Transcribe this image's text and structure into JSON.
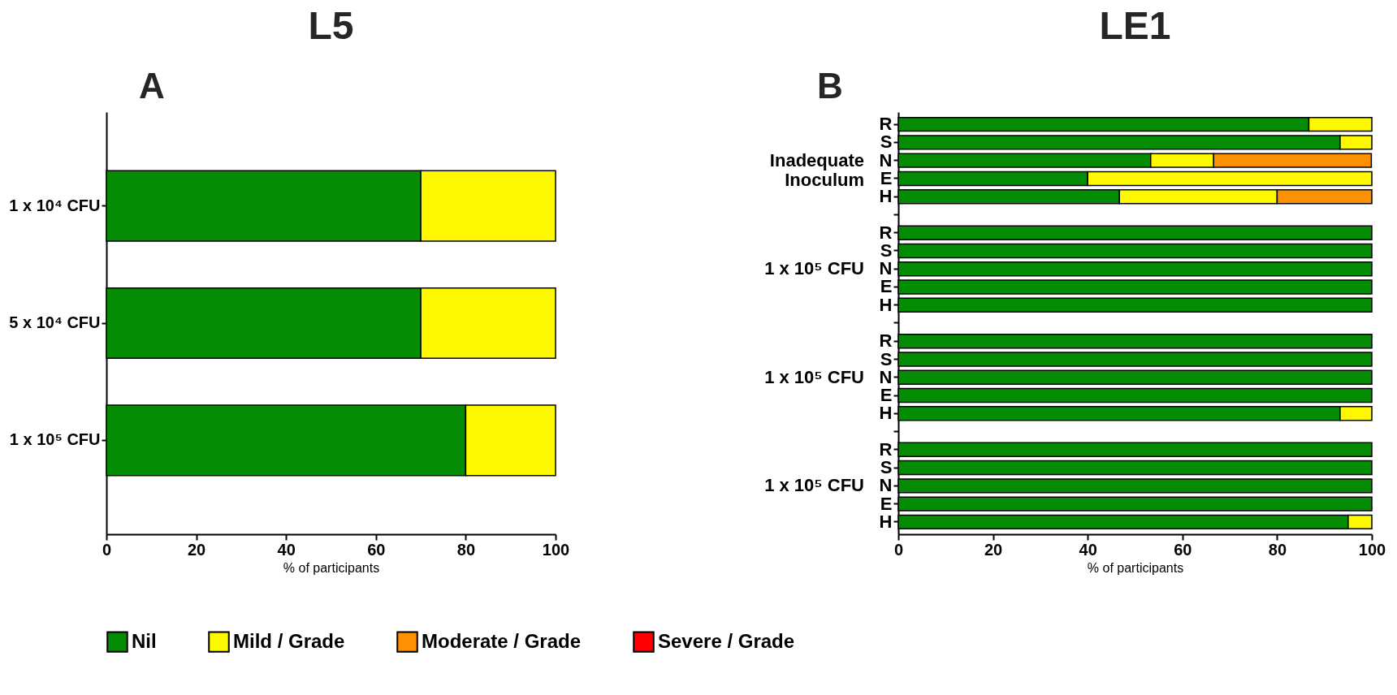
{
  "chart_data": [
    {
      "type": "bar",
      "orientation": "horizontal",
      "stacked": true,
      "title": "L5",
      "subtitle": "A",
      "xlabel": "% of participants",
      "categories": [
        "1 x 10⁴ CFU",
        "5 x 10⁴ CFU",
        "1 x 10⁵ CFU"
      ],
      "series": [
        {
          "name": "Nil",
          "color": "#058c05",
          "values": [
            70,
            70,
            80
          ]
        },
        {
          "name": "Mild / Grade",
          "color": "#fef901",
          "values": [
            30,
            30,
            20
          ]
        },
        {
          "name": "Moderate / Grade",
          "color": "#fe9102",
          "values": [
            null,
            null,
            null
          ]
        },
        {
          "name": "Severe / Grade",
          "color": "#fe0000",
          "values": [
            null,
            null,
            null
          ]
        }
      ],
      "xlim": [
        0,
        100
      ],
      "xticks": [
        0,
        20,
        40,
        60,
        80,
        100
      ],
      "grid": false,
      "legend": "bottom"
    },
    {
      "type": "bar",
      "orientation": "horizontal",
      "stacked": true,
      "title": "LE1",
      "subtitle": "B",
      "xlabel": "% of participants",
      "categories": [
        "R",
        "S",
        "N",
        "E",
        "H",
        null,
        "R",
        "S",
        "N",
        "E",
        "H",
        null,
        "R",
        "S",
        "N",
        "E",
        "H",
        null,
        "R",
        "S",
        "N",
        "E",
        "H"
      ],
      "series": [
        {
          "color": "#058c05",
          "values": [
            86.7,
            93.3,
            53.3,
            40,
            46.7,
            null,
            100,
            100,
            100,
            100,
            100,
            null,
            100,
            100,
            100,
            100,
            93.3,
            null,
            100,
            100,
            100,
            100,
            95
          ]
        },
        {
          "color": "#fef901",
          "values": [
            13.3,
            6.7,
            13.3,
            60,
            33.3,
            null,
            null,
            null,
            null,
            null,
            null,
            null,
            null,
            null,
            null,
            null,
            6.7,
            null,
            null,
            null,
            null,
            null,
            5
          ]
        },
        {
          "color": "#fe9102",
          "values": [
            null,
            null,
            33.3,
            null,
            20,
            null,
            null,
            null,
            null,
            null,
            null,
            null,
            null,
            null,
            null,
            null,
            null,
            null,
            null,
            null,
            null,
            null,
            null
          ]
        }
      ],
      "annotations": [
        "Inadequate\nInoculum",
        "1 x 10⁵ CFU",
        "1 x 10⁵ CFU",
        "1 x 10⁵ CFU"
      ],
      "xlim": [
        0,
        100
      ],
      "xticks": [
        0,
        20,
        40,
        60,
        80,
        100
      ],
      "grid": false,
      "legend": "bottom"
    }
  ]
}
